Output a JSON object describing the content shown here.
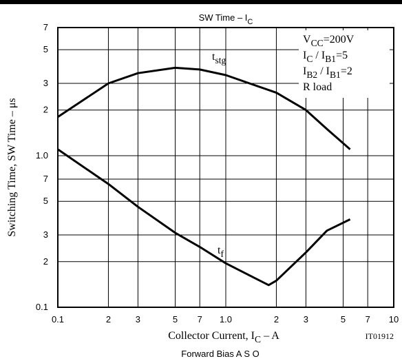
{
  "chart_data": {
    "type": "line",
    "title": [
      "SW Time – I",
      "C"
    ],
    "xlabel": [
      "Collector Current, I",
      "C",
      "  –  A"
    ],
    "ylabel": "Switching Time, SW Time  –  μs",
    "code": "IT01912",
    "footer": "Forward Bias A S O",
    "conditions": [
      [
        "V",
        "CC",
        "=200V"
      ],
      [
        "I",
        "C",
        " / I",
        "B1",
        "=5"
      ],
      [
        "I",
        "B2",
        " / I",
        "B1",
        "=2"
      ],
      [
        "R load"
      ]
    ],
    "xscale": "log",
    "yscale": "log",
    "grid": true,
    "xlim": [
      0.1,
      10
    ],
    "ylim": [
      0.1,
      7
    ],
    "xticks": [
      0.1,
      {
        "value": 0.2,
        "label": "2"
      },
      {
        "value": 0.3,
        "label": "3"
      },
      {
        "value": 0.5,
        "label": "5"
      },
      {
        "value": 0.7,
        "label": "7"
      },
      {
        "value": 1,
        "label": "1.0"
      },
      2,
      3,
      5,
      7,
      10
    ],
    "yticks": [
      0.1,
      {
        "value": 0.2,
        "label": "2"
      },
      {
        "value": 0.3,
        "label": "3"
      },
      {
        "value": 0.5,
        "label": "5"
      },
      {
        "value": 0.7,
        "label": "7"
      },
      {
        "value": 1,
        "label": "1.0"
      },
      2,
      3,
      5,
      7
    ],
    "series": [
      {
        "label": [
          "t",
          "stg"
        ],
        "color": "#000000",
        "x": [
          0.1,
          0.2,
          0.3,
          0.5,
          0.7,
          1,
          2,
          3,
          4,
          5.5
        ],
        "values": [
          1.8,
          3.0,
          3.5,
          3.8,
          3.7,
          3.4,
          2.6,
          2.0,
          1.5,
          1.1
        ]
      },
      {
        "label": [
          "t",
          "f"
        ],
        "color": "#000000",
        "x": [
          0.1,
          0.2,
          0.3,
          0.5,
          0.7,
          1,
          1.5,
          1.8,
          2,
          3,
          4,
          5.5
        ],
        "values": [
          1.1,
          0.65,
          0.46,
          0.31,
          0.25,
          0.195,
          0.155,
          0.14,
          0.15,
          0.23,
          0.32,
          0.38
        ]
      }
    ]
  }
}
